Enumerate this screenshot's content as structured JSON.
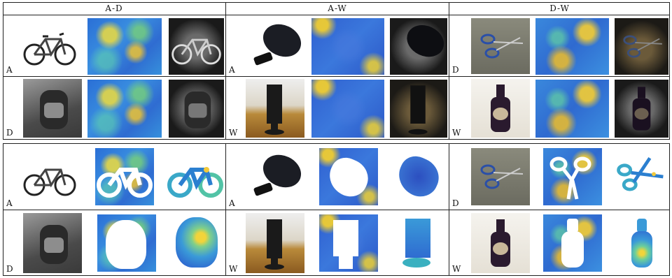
{
  "columns": [
    {
      "label": "A-D",
      "top_tags": [
        "A",
        "D"
      ],
      "bottom_tags": [
        "A",
        "D"
      ]
    },
    {
      "label": "A-W",
      "top_tags": [
        "A",
        "W"
      ],
      "bottom_tags": [
        "A",
        "W"
      ]
    },
    {
      "label": "D-W",
      "top_tags": [
        "D",
        "W"
      ],
      "bottom_tags": [
        "D",
        "W"
      ]
    }
  ],
  "icons": {
    "row1": [
      "bicycle",
      "computer-mouse",
      "scissors"
    ],
    "row2": [
      "backpack",
      "monitor",
      "bottle"
    ]
  },
  "colors": {
    "heatmap_low": "#2f6cd1",
    "heatmap_mid": "#5cc8b0",
    "heatmap_high": "#f2d43a",
    "rule": "#222222"
  }
}
